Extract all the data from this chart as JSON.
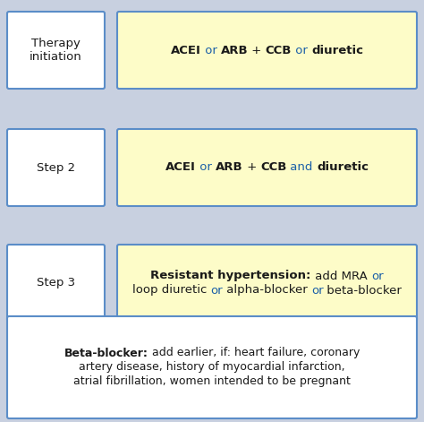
{
  "bg_color": "#c8d0e0",
  "white_box_color": "#ffffff",
  "yellow_box_color": "#fdfcc8",
  "border_color": "#5b8dc8",
  "text_color_black": "#1a1a1a",
  "text_color_blue": "#1a5fa8",
  "figsize": [
    4.74,
    4.71
  ],
  "dpi": 100,
  "rows": [
    {
      "label": "Therapy\ninitiation",
      "line1_parts": [
        {
          "text": "ACEI",
          "bold": true,
          "color": "black"
        },
        {
          "text": " or ",
          "bold": false,
          "color": "blue"
        },
        {
          "text": "ARB",
          "bold": true,
          "color": "black"
        },
        {
          "text": " + ",
          "bold": false,
          "color": "black"
        },
        {
          "text": "CCB",
          "bold": true,
          "color": "black"
        },
        {
          "text": " or ",
          "bold": false,
          "color": "blue"
        },
        {
          "text": "diuretic",
          "bold": true,
          "color": "black"
        }
      ],
      "line2_parts": []
    },
    {
      "label": "Step 2",
      "line1_parts": [
        {
          "text": "ACEI",
          "bold": true,
          "color": "black"
        },
        {
          "text": " or ",
          "bold": false,
          "color": "blue"
        },
        {
          "text": "ARB",
          "bold": true,
          "color": "black"
        },
        {
          "text": " + ",
          "bold": false,
          "color": "black"
        },
        {
          "text": "CCB",
          "bold": true,
          "color": "black"
        },
        {
          "text": " and ",
          "bold": false,
          "color": "blue"
        },
        {
          "text": "diuretic",
          "bold": true,
          "color": "black"
        }
      ],
      "line2_parts": []
    },
    {
      "label": "Step 3",
      "line1_parts": [
        {
          "text": "Resistant hypertension:",
          "bold": true,
          "color": "black"
        },
        {
          "text": " add MRA ",
          "bold": false,
          "color": "black"
        },
        {
          "text": "or",
          "bold": false,
          "color": "blue"
        }
      ],
      "line2_parts": [
        {
          "text": "loop diuretic ",
          "bold": false,
          "color": "black"
        },
        {
          "text": "or",
          "bold": false,
          "color": "blue"
        },
        {
          "text": " alpha-blocker ",
          "bold": false,
          "color": "black"
        },
        {
          "text": "or",
          "bold": false,
          "color": "blue"
        },
        {
          "text": " beta-blocker",
          "bold": false,
          "color": "black"
        }
      ]
    }
  ],
  "bottom_lines": [
    [
      {
        "text": "Beta-blocker:",
        "bold": true,
        "color": "black"
      },
      {
        "text": " add earlier, if: heart failure, coronary",
        "bold": false,
        "color": "black"
      }
    ],
    [
      {
        "text": "artery disease, history of myocardial infarction,",
        "bold": false,
        "color": "black"
      }
    ],
    [
      {
        "text": "atrial fibrillation, women intended to be pregnant",
        "bold": false,
        "color": "black"
      }
    ]
  ]
}
